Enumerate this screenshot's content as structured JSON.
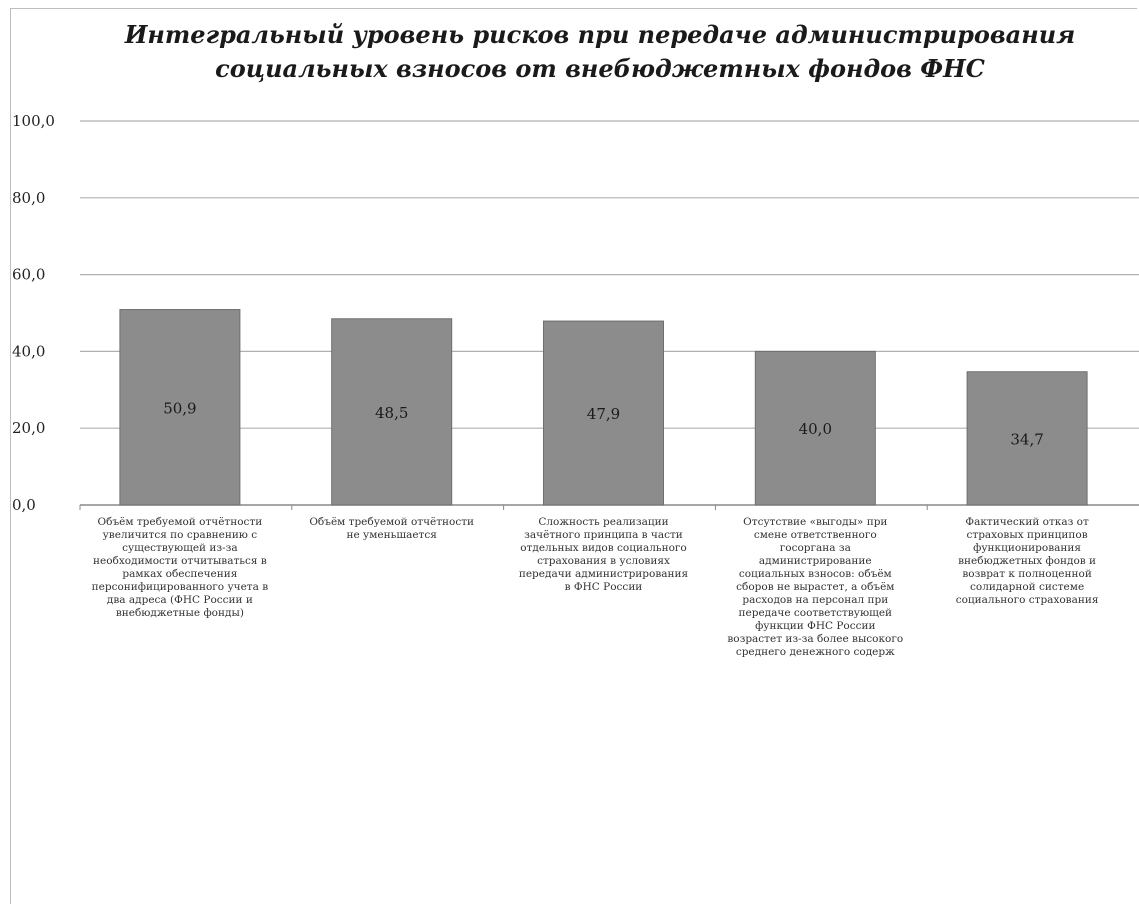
{
  "chart_data": {
    "type": "bar",
    "title_lines": [
      "Интегральный уровень рисков при передаче администрирования",
      "социальных взносов от внебюджетных фондов ФНС"
    ],
    "categories": [
      "Объём требуемой отчётности увеличится по сравнению с существующей из-за необходимости отчитываться в рамках обеспечения персонифицированного учета в два адреса (ФНС России и внебюджетные фонды)",
      "Объём требуемой отчётности не уменьшается",
      "Сложность реализации зачётного принципа в части отдельных видов социального страхования в условиях передачи администрирования в ФНС России",
      "Отсутствие «выгоды» при смене ответственного госоргана за администрирование социальных взносов: объём сборов не вырастет, а объём расходов на персонал при передаче соответствующей функции ФНС России возрастет из-за более высокого среднего денежного содерж",
      "Фактический отказ от страховых принципов функционирования внебюджетных фондов и возврат к полноценной солидарной системе социального страхования"
    ],
    "values": [
      50.9,
      48.5,
      47.9,
      40.0,
      34.7
    ],
    "value_labels": [
      "50,9",
      "48,5",
      "47,9",
      "40,0",
      "34,7"
    ],
    "ylim": [
      0,
      100
    ],
    "y_ticks": [
      "0,0",
      "20,0",
      "40,0",
      "60,0",
      "80,0",
      "100,0"
    ],
    "grid": true,
    "legend": "none",
    "colors": {
      "bar": "#8c8c8c",
      "bar_border": "#6e6e6e",
      "grid": "#b0b0b0",
      "axis": "#888888"
    }
  }
}
